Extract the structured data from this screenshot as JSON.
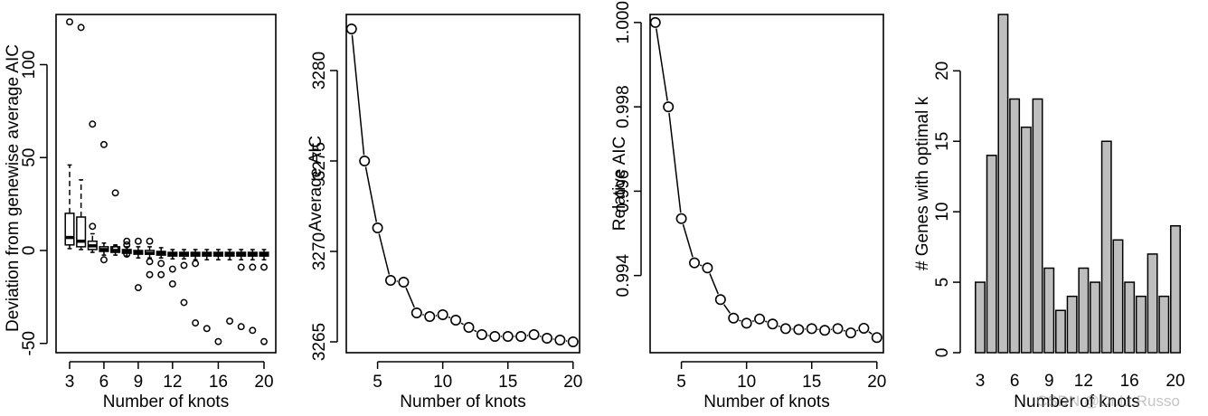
{
  "watermark": "CSDN @Dr.Lt.Russo",
  "chart_data": [
    {
      "type": "boxplot",
      "xlabel": "Number of knots",
      "ylabel": "Deviation from genewise average AIC",
      "xticks": [
        "3",
        "6",
        "9",
        "12",
        "16",
        "20"
      ],
      "yticks": [
        "-50",
        "0",
        "50",
        "100"
      ],
      "ylim": [
        -55,
        127
      ],
      "categories": [
        3,
        4,
        5,
        6,
        7,
        8,
        9,
        10,
        11,
        12,
        13,
        14,
        15,
        16,
        17,
        18,
        19,
        20
      ],
      "boxes": [
        {
          "k": 3,
          "whislo": 1,
          "q1": 3,
          "med": 7,
          "q3": 20,
          "whishi": 46
        },
        {
          "k": 4,
          "whislo": 0.5,
          "q1": 2,
          "med": 5,
          "q3": 18,
          "whishi": 38
        },
        {
          "k": 5,
          "whislo": -1,
          "q1": 0.5,
          "med": 2.5,
          "q3": 5,
          "whishi": 9
        },
        {
          "k": 6,
          "whislo": -2.5,
          "q1": -0.5,
          "med": 0.5,
          "q3": 2,
          "whishi": 4
        },
        {
          "k": 7,
          "whislo": -2.5,
          "q1": -1,
          "med": 0,
          "q3": 2,
          "whishi": 3
        },
        {
          "k": 8,
          "whislo": -3,
          "q1": -1.5,
          "med": -0.5,
          "q3": 0.5,
          "whishi": 2
        },
        {
          "k": 9,
          "whislo": -4,
          "q1": -2,
          "med": -1,
          "q3": 0,
          "whishi": 2
        },
        {
          "k": 10,
          "whislo": -4,
          "q1": -2,
          "med": -1.5,
          "q3": 0,
          "whishi": 2
        },
        {
          "k": 11,
          "whislo": -4,
          "q1": -2.5,
          "med": -1.5,
          "q3": -0.5,
          "whishi": 1.5
        },
        {
          "k": 12,
          "whislo": -4.5,
          "q1": -3,
          "med": -2,
          "q3": -1,
          "whishi": 0.5
        },
        {
          "k": 13,
          "whislo": -4.5,
          "q1": -3,
          "med": -2,
          "q3": -1,
          "whishi": 0.5
        },
        {
          "k": 14,
          "whislo": -5,
          "q1": -3,
          "med": -2,
          "q3": -1,
          "whishi": 0.5
        },
        {
          "k": 15,
          "whislo": -5,
          "q1": -3,
          "med": -2,
          "q3": -1,
          "whishi": 0.5
        },
        {
          "k": 16,
          "whislo": -5,
          "q1": -3,
          "med": -2,
          "q3": -1,
          "whishi": 0.5
        },
        {
          "k": 17,
          "whislo": -5,
          "q1": -3,
          "med": -2,
          "q3": -1,
          "whishi": 0.5
        },
        {
          "k": 18,
          "whislo": -5,
          "q1": -3,
          "med": -2,
          "q3": -1,
          "whishi": 0.5
        },
        {
          "k": 19,
          "whislo": -5,
          "q1": -3,
          "med": -2,
          "q3": -1,
          "whishi": 0.5
        },
        {
          "k": 20,
          "whislo": -5,
          "q1": -3,
          "med": -2,
          "q3": -1,
          "whishi": 0.5
        }
      ],
      "outliers": [
        [
          3,
          123
        ],
        [
          4,
          120
        ],
        [
          5,
          68
        ],
        [
          5,
          13
        ],
        [
          6,
          57
        ],
        [
          6,
          -5
        ],
        [
          7,
          31
        ],
        [
          7,
          1
        ],
        [
          8,
          5
        ],
        [
          8,
          3
        ],
        [
          8,
          -2
        ],
        [
          9,
          5
        ],
        [
          9,
          -20
        ],
        [
          10,
          5
        ],
        [
          10,
          -6
        ],
        [
          10,
          -13
        ],
        [
          11,
          -7
        ],
        [
          11,
          -13
        ],
        [
          12,
          -10
        ],
        [
          12,
          -18
        ],
        [
          13,
          -8
        ],
        [
          13,
          -28
        ],
        [
          14,
          -7
        ],
        [
          14,
          -39
        ],
        [
          15,
          -42
        ],
        [
          16,
          -49
        ],
        [
          17,
          -38
        ],
        [
          18,
          -9
        ],
        [
          18,
          -41
        ],
        [
          19,
          -9
        ],
        [
          19,
          -43
        ],
        [
          20,
          -9
        ],
        [
          20,
          -49
        ]
      ]
    },
    {
      "type": "line",
      "xlabel": "Number of knots",
      "ylabel": "Average AIC",
      "xticks": [
        "5",
        "10",
        "15",
        "20"
      ],
      "yticks": [
        "3265",
        "3270",
        "3275",
        "3280"
      ],
      "xlim": [
        2.6,
        20.5
      ],
      "ylim": [
        3264.4,
        3283.1
      ],
      "x": [
        3,
        4,
        5,
        6,
        7,
        8,
        9,
        10,
        11,
        12,
        13,
        14,
        15,
        16,
        17,
        18,
        19,
        20
      ],
      "y": [
        3282.3,
        3275.0,
        3271.3,
        3268.4,
        3268.3,
        3266.6,
        3266.4,
        3266.5,
        3266.2,
        3265.8,
        3265.4,
        3265.3,
        3265.3,
        3265.3,
        3265.4,
        3265.2,
        3265.1,
        3265.0
      ]
    },
    {
      "type": "line",
      "xlabel": "Number of knots",
      "ylabel": "Relative AIC",
      "xticks": [
        "5",
        "10",
        "15",
        "20"
      ],
      "yticks": [
        "0.994",
        "0.996",
        "0.998",
        "1.000"
      ],
      "xlim": [
        2.6,
        20.5
      ],
      "ylim": [
        0.99217,
        1.00019
      ],
      "x": [
        3,
        4,
        5,
        6,
        7,
        8,
        9,
        10,
        11,
        12,
        13,
        14,
        15,
        16,
        17,
        18,
        19,
        20
      ],
      "y": [
        1.0,
        0.998,
        0.99535,
        0.9943,
        0.99418,
        0.99343,
        0.99299,
        0.99287,
        0.99297,
        0.99285,
        0.99274,
        0.99272,
        0.99274,
        0.9927,
        0.99274,
        0.99264,
        0.99275,
        0.99253
      ]
    },
    {
      "type": "bar",
      "xlabel": "Number of knots",
      "ylabel": "# Genes with optimal k",
      "xticks": [
        "3",
        "6",
        "9",
        "12",
        "16",
        "20"
      ],
      "yticks": [
        "0",
        "5",
        "10",
        "15",
        "20"
      ],
      "ylim": [
        0,
        24
      ],
      "bar_color": "#bebebe",
      "categories": [
        3,
        4,
        5,
        6,
        7,
        8,
        9,
        10,
        11,
        12,
        13,
        14,
        15,
        16,
        17,
        18,
        19,
        20
      ],
      "values": [
        5,
        14,
        24,
        18,
        16,
        18,
        6,
        3,
        4,
        6,
        5,
        15,
        8,
        5,
        4,
        7,
        4,
        9
      ]
    }
  ]
}
